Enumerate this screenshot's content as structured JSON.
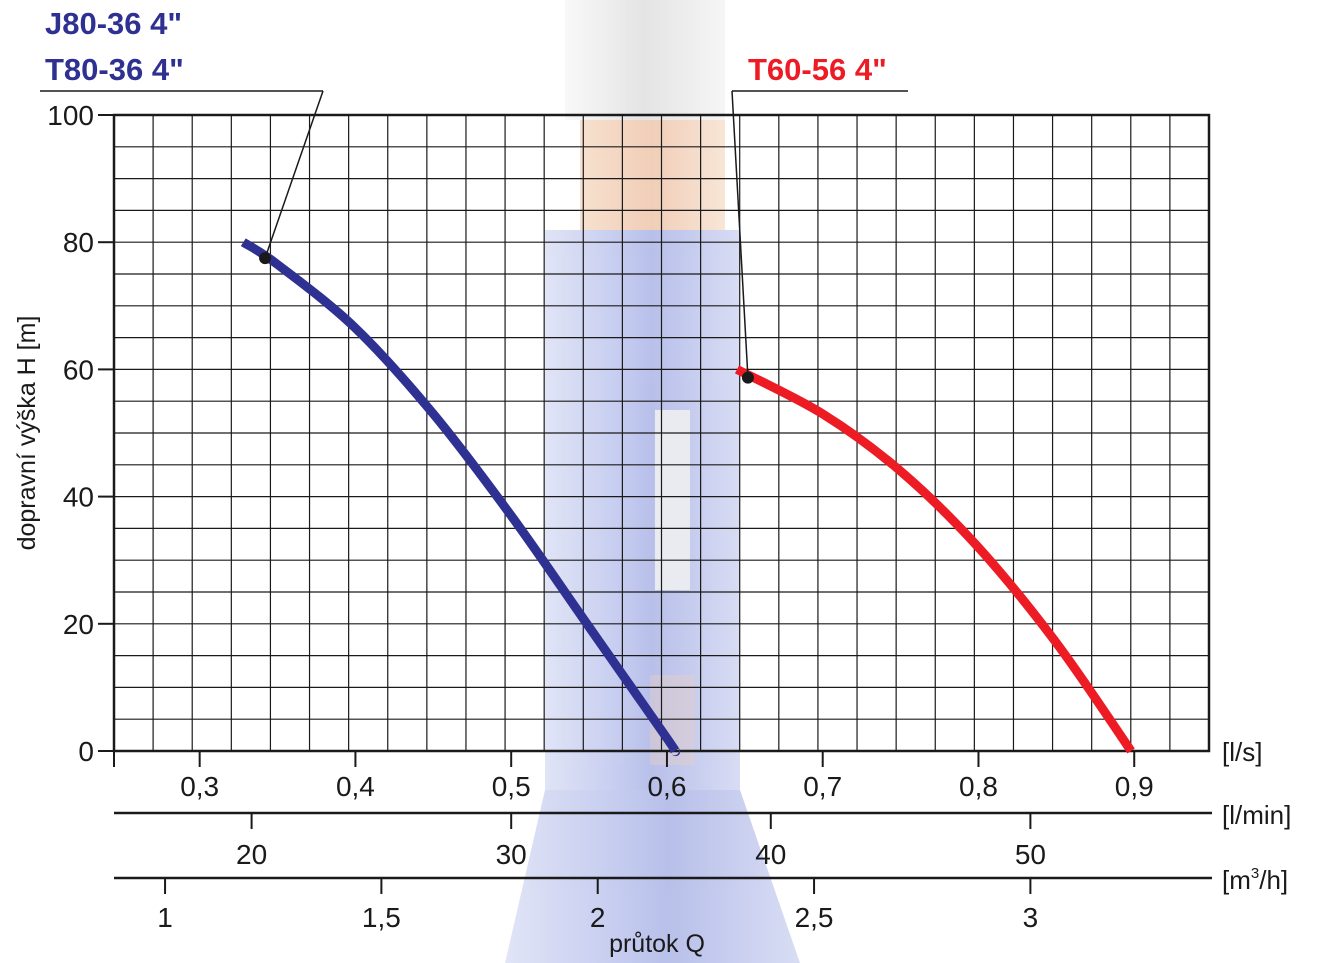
{
  "chart_data": {
    "type": "line",
    "ylabel": "dopravní výška H [m]",
    "xlabel": "průtok Q",
    "ylim": [
      0,
      100
    ],
    "yticks": [
      0,
      20,
      40,
      60,
      80,
      100
    ],
    "xlim": [
      0.245,
      0.948
    ],
    "x_unit": "[l/s]",
    "xticks": [
      {
        "value": 0.3,
        "label": "0,3"
      },
      {
        "value": 0.4,
        "label": "0,4"
      },
      {
        "value": 0.5,
        "label": "0,5"
      },
      {
        "value": 0.6,
        "label": "0,6"
      },
      {
        "value": 0.7,
        "label": "0,7"
      },
      {
        "value": 0.8,
        "label": "0,8"
      },
      {
        "value": 0.9,
        "label": "0,9"
      }
    ],
    "secondary_axes": [
      {
        "unit": "[l/min]",
        "factor": 60,
        "ticks": [
          {
            "value": 20,
            "label": "20"
          },
          {
            "value": 30,
            "label": "30"
          },
          {
            "value": 40,
            "label": "40"
          },
          {
            "value": 50,
            "label": "50"
          }
        ]
      },
      {
        "unit_prefix": "[m",
        "unit_sup": "3",
        "unit_suffix": "/h]",
        "factor": 3.6,
        "ticks": [
          {
            "value": 1,
            "label": "1"
          },
          {
            "value": 1.5,
            "label": "1,5"
          },
          {
            "value": 2,
            "label": "2"
          },
          {
            "value": 2.5,
            "label": "2,5"
          },
          {
            "value": 3,
            "label": "3"
          }
        ]
      }
    ],
    "grid": true,
    "series": [
      {
        "name": "J80-36 4\"",
        "name2": "T80-36 4\"",
        "color": "#2e3192",
        "x": [
          0.328,
          0.35,
          0.4,
          0.45,
          0.5,
          0.55,
          0.6,
          0.605
        ],
        "y": [
          80,
          76.5,
          66.5,
          53,
          37,
          19.5,
          2,
          0
        ]
      },
      {
        "name": "T60-56 4\"",
        "color": "#ed1c24",
        "x": [
          0.645,
          0.7,
          0.75,
          0.8,
          0.85,
          0.898
        ],
        "y": [
          60,
          53,
          44,
          32,
          17,
          0
        ]
      }
    ]
  }
}
